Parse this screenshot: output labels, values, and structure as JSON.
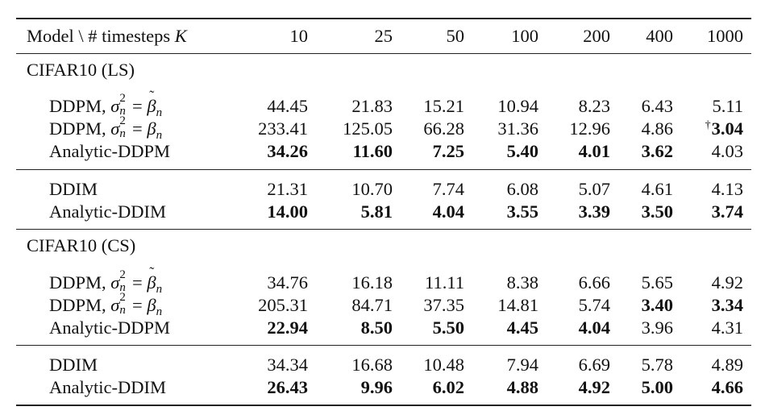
{
  "header": {
    "model_col": "Model \\ # timesteps ",
    "model_col_var": "K",
    "timesteps": [
      "10",
      "25",
      "50",
      "100",
      "200",
      "400",
      "1000"
    ]
  },
  "sections": [
    {
      "title": "CIFAR10 (LS)",
      "groups": [
        [
          {
            "model": "DDPM, ",
            "sigma": "tilde-beta",
            "values": [
              "44.45",
              "21.83",
              "15.21",
              "10.94",
              "8.23",
              "6.43",
              "5.11"
            ],
            "bold": [
              false,
              false,
              false,
              false,
              false,
              false,
              false
            ],
            "dagger": [
              false,
              false,
              false,
              false,
              false,
              false,
              false
            ]
          },
          {
            "model": "DDPM, ",
            "sigma": "beta",
            "values": [
              "233.41",
              "125.05",
              "66.28",
              "31.36",
              "12.96",
              "4.86",
              "3.04"
            ],
            "bold": [
              false,
              false,
              false,
              false,
              false,
              false,
              true
            ],
            "dagger": [
              false,
              false,
              false,
              false,
              false,
              false,
              true
            ]
          },
          {
            "model": "Analytic-DDPM",
            "sigma": "",
            "values": [
              "34.26",
              "11.60",
              "7.25",
              "5.40",
              "4.01",
              "3.62",
              "4.03"
            ],
            "bold": [
              true,
              true,
              true,
              true,
              true,
              true,
              false
            ],
            "dagger": [
              false,
              false,
              false,
              false,
              false,
              false,
              false
            ]
          }
        ],
        [
          {
            "model": "DDIM",
            "sigma": "",
            "values": [
              "21.31",
              "10.70",
              "7.74",
              "6.08",
              "5.07",
              "4.61",
              "4.13"
            ],
            "bold": [
              false,
              false,
              false,
              false,
              false,
              false,
              false
            ],
            "dagger": [
              false,
              false,
              false,
              false,
              false,
              false,
              false
            ]
          },
          {
            "model": "Analytic-DDIM",
            "sigma": "",
            "values": [
              "14.00",
              "5.81",
              "4.04",
              "3.55",
              "3.39",
              "3.50",
              "3.74"
            ],
            "bold": [
              true,
              true,
              true,
              true,
              true,
              true,
              true
            ],
            "dagger": [
              false,
              false,
              false,
              false,
              false,
              false,
              false
            ]
          }
        ]
      ]
    },
    {
      "title": "CIFAR10 (CS)",
      "groups": [
        [
          {
            "model": "DDPM, ",
            "sigma": "tilde-beta",
            "values": [
              "34.76",
              "16.18",
              "11.11",
              "8.38",
              "6.66",
              "5.65",
              "4.92"
            ],
            "bold": [
              false,
              false,
              false,
              false,
              false,
              false,
              false
            ],
            "dagger": [
              false,
              false,
              false,
              false,
              false,
              false,
              false
            ]
          },
          {
            "model": "DDPM, ",
            "sigma": "beta",
            "values": [
              "205.31",
              "84.71",
              "37.35",
              "14.81",
              "5.74",
              "3.40",
              "3.34"
            ],
            "bold": [
              false,
              false,
              false,
              false,
              false,
              true,
              true
            ],
            "dagger": [
              false,
              false,
              false,
              false,
              false,
              false,
              false
            ]
          },
          {
            "model": "Analytic-DDPM",
            "sigma": "",
            "values": [
              "22.94",
              "8.50",
              "5.50",
              "4.45",
              "4.04",
              "3.96",
              "4.31"
            ],
            "bold": [
              true,
              true,
              true,
              true,
              true,
              false,
              false
            ],
            "dagger": [
              false,
              false,
              false,
              false,
              false,
              false,
              false
            ]
          }
        ],
        [
          {
            "model": "DDIM",
            "sigma": "",
            "values": [
              "34.34",
              "16.68",
              "10.48",
              "7.94",
              "6.69",
              "5.78",
              "4.89"
            ],
            "bold": [
              false,
              false,
              false,
              false,
              false,
              false,
              false
            ],
            "dagger": [
              false,
              false,
              false,
              false,
              false,
              false,
              false
            ]
          },
          {
            "model": "Analytic-DDIM",
            "sigma": "",
            "values": [
              "26.43",
              "9.96",
              "6.02",
              "4.88",
              "4.92",
              "5.00",
              "4.66"
            ],
            "bold": [
              true,
              true,
              true,
              true,
              true,
              true,
              true
            ],
            "dagger": [
              false,
              false,
              false,
              false,
              false,
              false,
              false
            ]
          }
        ]
      ]
    }
  ]
}
